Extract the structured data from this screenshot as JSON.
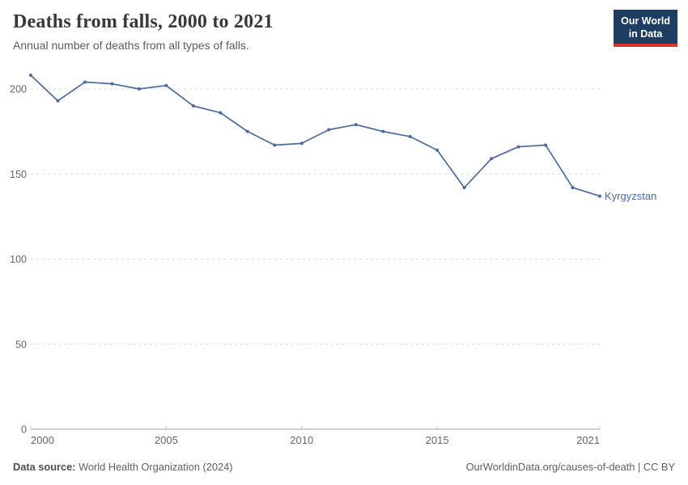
{
  "header": {
    "title": "Deaths from falls, 2000 to 2021",
    "subtitle": "Annual number of deaths from all types of falls.",
    "logo": {
      "line1": "Our World",
      "line2": "in Data"
    }
  },
  "footer": {
    "source_label": "Data source:",
    "source_value": " World Health Organization (2024)",
    "credit": "OurWorldinData.org/causes-of-death | CC BY"
  },
  "colors": {
    "accent": "#4C6A9C",
    "logo_bg": "#1d3d63",
    "logo_red": "#d8352e",
    "grid": "#dcdcdc",
    "axis": "#a3a3a3",
    "tick_label": "#666666"
  },
  "chart_data": {
    "type": "line",
    "title": "Deaths from falls, 2000 to 2021",
    "subtitle": "Annual number of deaths from all types of falls.",
    "xlabel": "",
    "ylabel": "",
    "x": [
      2000,
      2001,
      2002,
      2003,
      2004,
      2005,
      2006,
      2007,
      2008,
      2009,
      2010,
      2011,
      2012,
      2013,
      2014,
      2015,
      2016,
      2017,
      2018,
      2019,
      2020,
      2021
    ],
    "series": [
      {
        "name": "Kyrgyzstan",
        "color": "#4C6A9C",
        "values": [
          208,
          193,
          204,
          203,
          200,
          202,
          190,
          186,
          175,
          167,
          168,
          176,
          179,
          175,
          172,
          164,
          142,
          159,
          166,
          167,
          142,
          137
        ]
      }
    ],
    "xticks": [
      2000,
      2005,
      2010,
      2015,
      2021
    ],
    "yticks": [
      0,
      50,
      100,
      150,
      200
    ],
    "xlim": [
      2000,
      2021
    ],
    "ylim": [
      0,
      212
    ],
    "grid": "horizontal-dashed",
    "legend": "end-of-line label"
  }
}
